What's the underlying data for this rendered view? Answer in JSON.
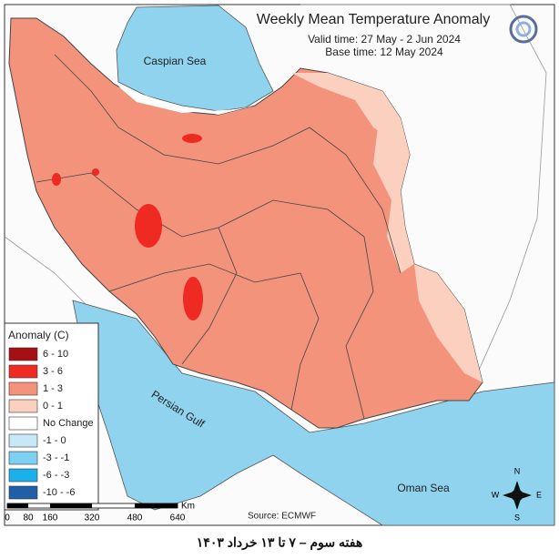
{
  "header": {
    "title": "Weekly Mean Temperature Anomaly",
    "valid_time": "Valid time: 27 May - 2 Jun 2024",
    "base_time": "Base time: 12 May 2024"
  },
  "map": {
    "labels": [
      "Caspian Sea",
      "Persian Gulf",
      "Oman Sea"
    ],
    "source": "Source: ECMWF",
    "compass": {
      "n": "N",
      "s": "S",
      "e": "E",
      "w": "W"
    }
  },
  "legend": {
    "title": "Anomaly (C)",
    "items": [
      {
        "label": "6 - 10",
        "color": "#a50f15"
      },
      {
        "label": "3 - 6",
        "color": "#ee2a22"
      },
      {
        "label": "1 - 3",
        "color": "#f4937b"
      },
      {
        "label": "0 - 1",
        "color": "#fbd0bf"
      },
      {
        "label": "No Change",
        "color": "#ffffff"
      },
      {
        "label": "-1 - 0",
        "color": "#c6e8f8"
      },
      {
        "label": "-3 - -1",
        "color": "#7dd0f2"
      },
      {
        "label": "-6 - -3",
        "color": "#1cb0ea"
      },
      {
        "label": "-10 - -6",
        "color": "#1f5fa8"
      }
    ]
  },
  "scale_bar": {
    "ticks": [
      "0",
      "80",
      "160",
      "320",
      "480",
      "640"
    ],
    "unit": "Km"
  },
  "footer": "هفته سوم – ۷ تا ۱۳ خرداد ۱۴۰۳"
}
